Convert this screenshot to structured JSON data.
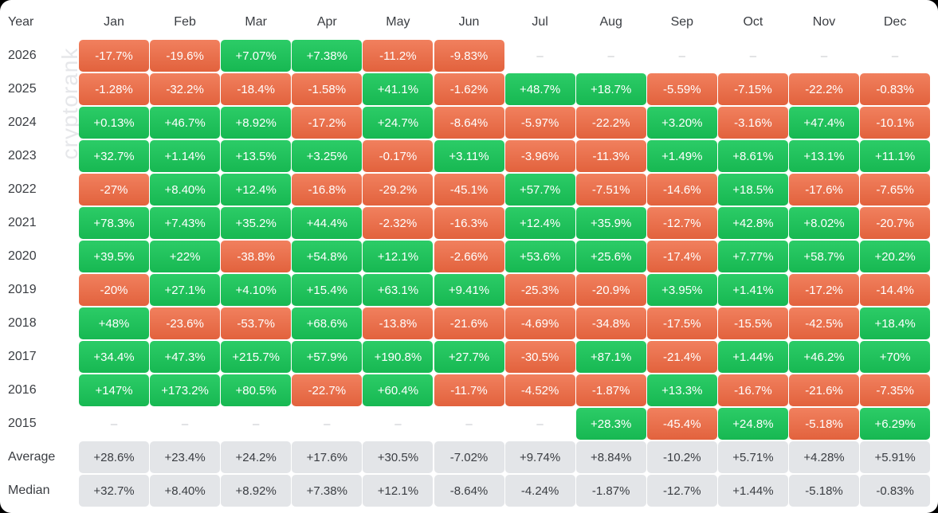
{
  "watermark": "cryptorank",
  "chart_data": {
    "type": "table",
    "row_header": "Year",
    "columns": [
      "Jan",
      "Feb",
      "Mar",
      "Apr",
      "May",
      "Jun",
      "Jul",
      "Aug",
      "Sep",
      "Oct",
      "Nov",
      "Dec"
    ],
    "rows": [
      {
        "label": "2026",
        "values": [
          "-17.7%",
          "-19.6%",
          "+7.07%",
          "+7.38%",
          "-11.2%",
          "-9.83%",
          "–",
          "–",
          "–",
          "–",
          "–",
          "–"
        ]
      },
      {
        "label": "2025",
        "values": [
          "-1.28%",
          "-32.2%",
          "-18.4%",
          "-1.58%",
          "+41.1%",
          "-1.62%",
          "+48.7%",
          "+18.7%",
          "-5.59%",
          "-7.15%",
          "-22.2%",
          "-0.83%"
        ]
      },
      {
        "label": "2024",
        "values": [
          "+0.13%",
          "+46.7%",
          "+8.92%",
          "-17.2%",
          "+24.7%",
          "-8.64%",
          "-5.97%",
          "-22.2%",
          "+3.20%",
          "-3.16%",
          "+47.4%",
          "-10.1%"
        ]
      },
      {
        "label": "2023",
        "values": [
          "+32.7%",
          "+1.14%",
          "+13.5%",
          "+3.25%",
          "-0.17%",
          "+3.11%",
          "-3.96%",
          "-11.3%",
          "+1.49%",
          "+8.61%",
          "+13.1%",
          "+11.1%"
        ]
      },
      {
        "label": "2022",
        "values": [
          "-27%",
          "+8.40%",
          "+12.4%",
          "-16.8%",
          "-29.2%",
          "-45.1%",
          "+57.7%",
          "-7.51%",
          "-14.6%",
          "+18.5%",
          "-17.6%",
          "-7.65%"
        ]
      },
      {
        "label": "2021",
        "values": [
          "+78.3%",
          "+7.43%",
          "+35.2%",
          "+44.4%",
          "-2.32%",
          "-16.3%",
          "+12.4%",
          "+35.9%",
          "-12.7%",
          "+42.8%",
          "+8.02%",
          "-20.7%"
        ]
      },
      {
        "label": "2020",
        "values": [
          "+39.5%",
          "+22%",
          "-38.8%",
          "+54.8%",
          "+12.1%",
          "-2.66%",
          "+53.6%",
          "+25.6%",
          "-17.4%",
          "+7.77%",
          "+58.7%",
          "+20.2%"
        ]
      },
      {
        "label": "2019",
        "values": [
          "-20%",
          "+27.1%",
          "+4.10%",
          "+15.4%",
          "+63.1%",
          "+9.41%",
          "-25.3%",
          "-20.9%",
          "+3.95%",
          "+1.41%",
          "-17.2%",
          "-14.4%"
        ]
      },
      {
        "label": "2018",
        "values": [
          "+48%",
          "-23.6%",
          "-53.7%",
          "+68.6%",
          "-13.8%",
          "-21.6%",
          "-4.69%",
          "-34.8%",
          "-17.5%",
          "-15.5%",
          "-42.5%",
          "+18.4%"
        ]
      },
      {
        "label": "2017",
        "values": [
          "+34.4%",
          "+47.3%",
          "+215.7%",
          "+57.9%",
          "+190.8%",
          "+27.7%",
          "-30.5%",
          "+87.1%",
          "-21.4%",
          "+1.44%",
          "+46.2%",
          "+70%"
        ]
      },
      {
        "label": "2016",
        "values": [
          "+147%",
          "+173.2%",
          "+80.5%",
          "-22.7%",
          "+60.4%",
          "-11.7%",
          "-4.52%",
          "-1.87%",
          "+13.3%",
          "-16.7%",
          "-21.6%",
          "-7.35%"
        ]
      },
      {
        "label": "2015",
        "values": [
          "–",
          "–",
          "–",
          "–",
          "–",
          "–",
          "–",
          "+28.3%",
          "-45.4%",
          "+24.8%",
          "-5.18%",
          "+6.29%"
        ]
      }
    ],
    "stats": [
      {
        "label": "Average",
        "values": [
          "+28.6%",
          "+23.4%",
          "+24.2%",
          "+17.6%",
          "+30.5%",
          "-7.02%",
          "+9.74%",
          "+8.84%",
          "-10.2%",
          "+5.71%",
          "+4.28%",
          "+5.91%"
        ]
      },
      {
        "label": "Median",
        "values": [
          "+32.7%",
          "+8.40%",
          "+8.92%",
          "+7.38%",
          "+12.1%",
          "-8.64%",
          "-4.24%",
          "-1.87%",
          "-12.7%",
          "+1.44%",
          "-5.18%",
          "-0.83%"
        ]
      }
    ],
    "colors": {
      "positive": "#22c55e",
      "negative": "#ea6c47",
      "stat_bg": "#e3e5e8",
      "empty_text": "#c5c7cb"
    }
  }
}
